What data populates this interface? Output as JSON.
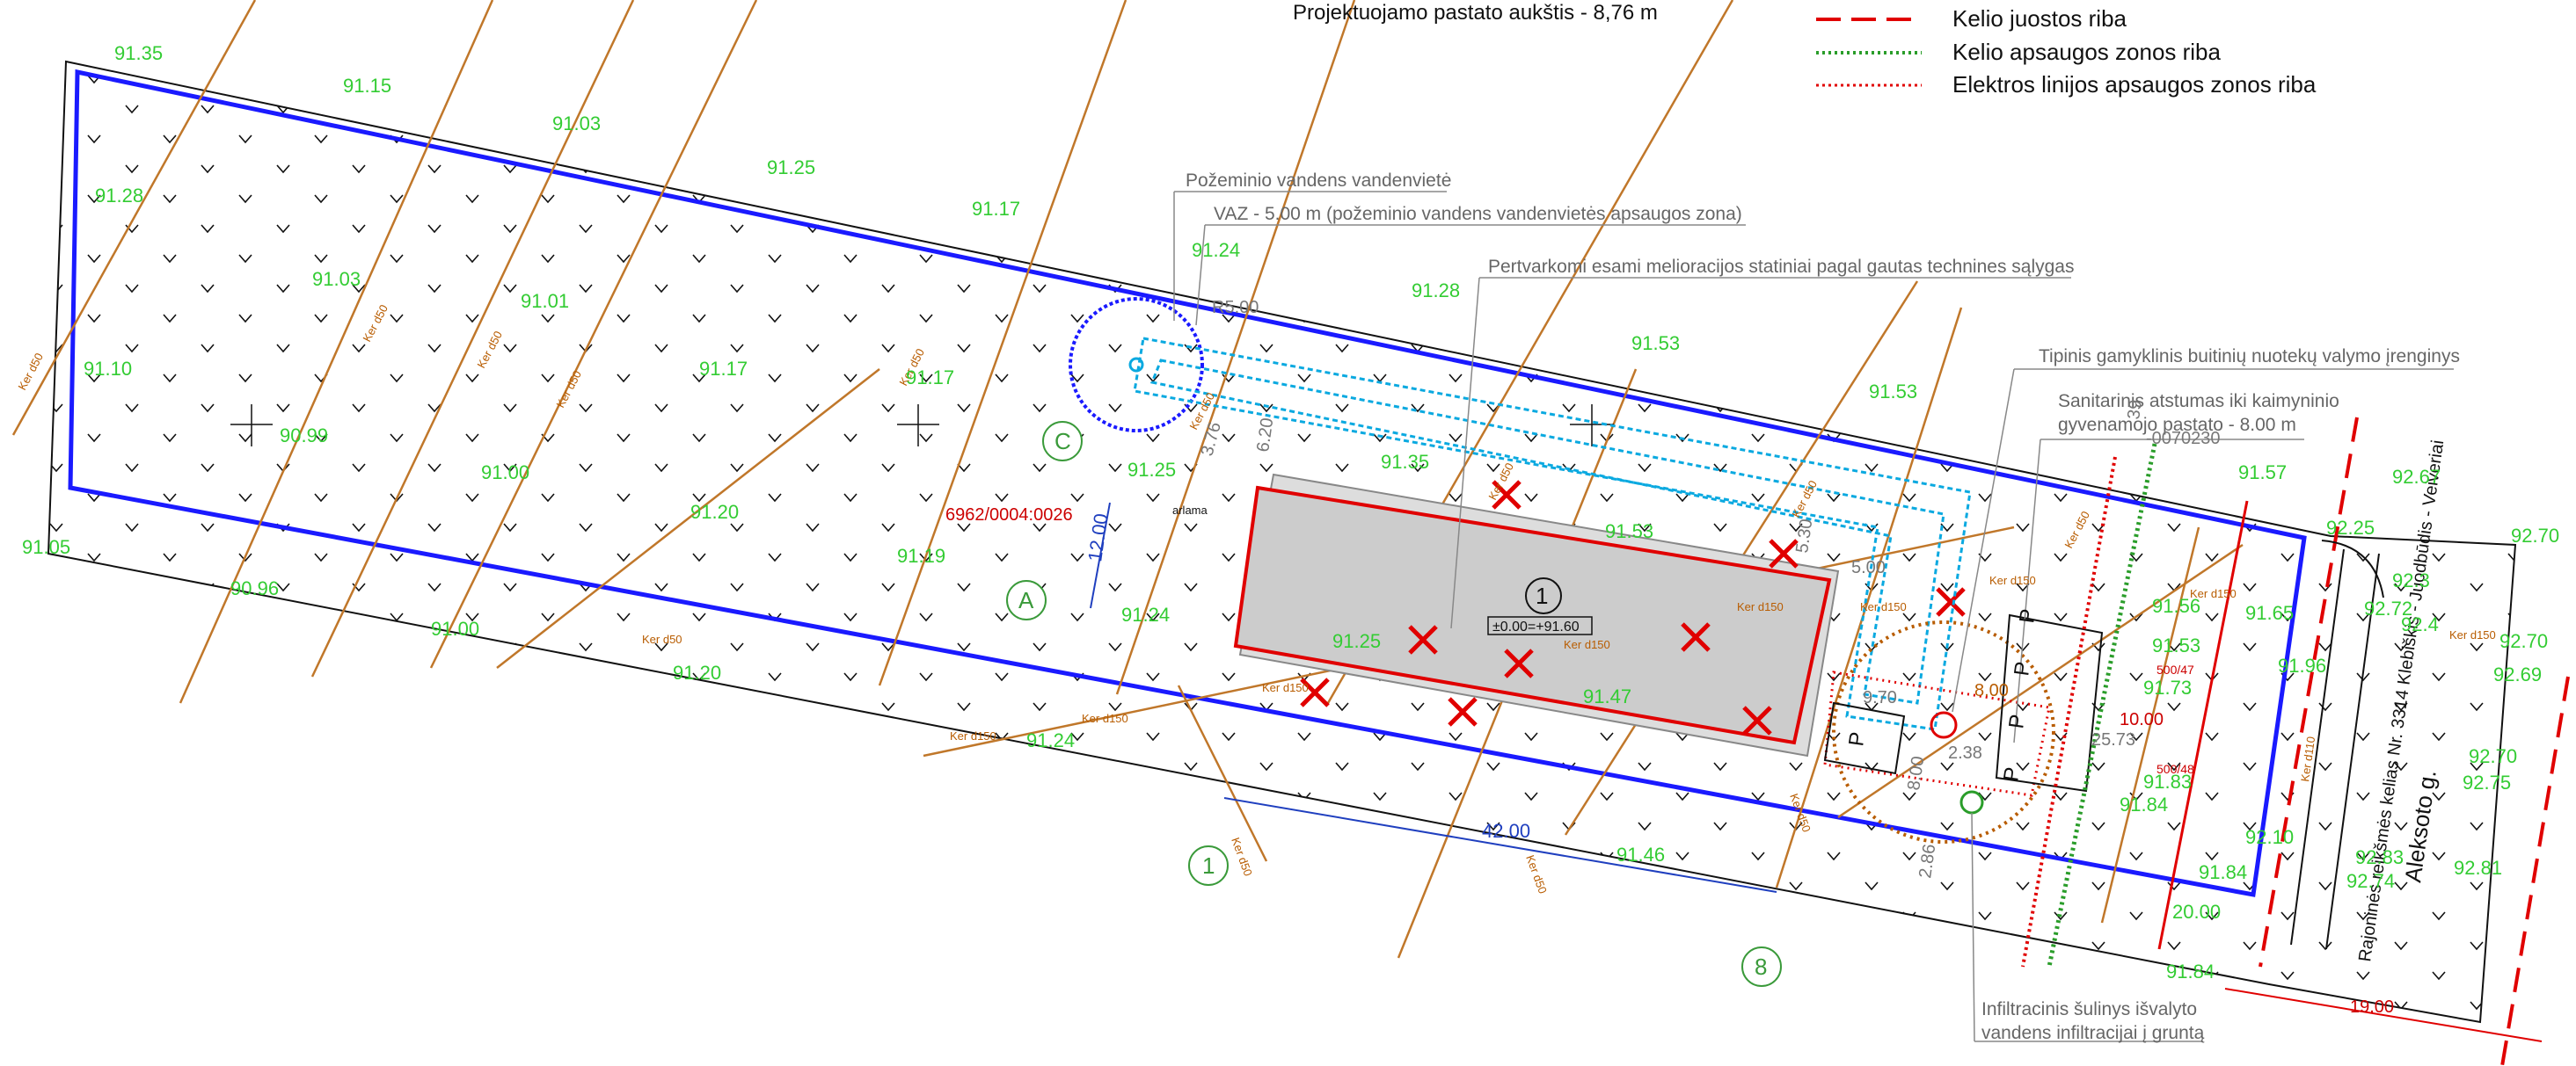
{
  "title": "Projektuojamo pastato aukštis - 8,76 m",
  "legend": [
    {
      "label": "Kelio juostos riba",
      "color": "#e00000",
      "style": "dashed"
    },
    {
      "label": "Kelio apsaugos zonos riba",
      "color": "#2a9d2a",
      "style": "dotted"
    },
    {
      "label": "Elektros linijos apsaugos zonos riba",
      "color": "#e00000",
      "style": "dotted"
    }
  ],
  "annotations": {
    "groundwater": "Požeminio vandens vandenvietė",
    "vaz": "VAZ - 5.00 m  (požeminio vandens vandenvietės apsaugos zona)",
    "melioration": "Pertvarkomi esami melioracijos statiniai pagal gautas technines sąlygas",
    "treatment": "Tipinis gamyklinis buitinių nuotekų valymo įrenginys",
    "sanitary_1": "Sanitarinis atstumas iki kaimyninio",
    "sanitary_2": "gyvenamojo pastato - 8.00 m",
    "infiltration_1": "Infiltracinis šulinys išvalyto",
    "infiltration_2": "vandens infiltracijai į gruntą",
    "road_1": "Rajoninės reikšmės kelias Nr. 3314 Klebiškis - Juodbūdis - Veiveriai",
    "street": "Aleksoto g.",
    "parcel": "6962/0004:0026",
    "parcel_partial": "arlama",
    "parcel_top": "-0070230",
    "building_no": "1",
    "building_level": "±0.00=+91.60"
  },
  "axes": {
    "c": "C",
    "a": "A",
    "n1": "1",
    "n8": "8"
  },
  "dimensions": {
    "d42": "42.00",
    "d12": "12.00",
    "d19": "19.00",
    "d20": "20.00",
    "d10": "10.00",
    "d8a": "8.00",
    "d8b": "8.00",
    "d5a": "5.00",
    "d5b": "5.30",
    "d620": "6.20",
    "d376": "3.76",
    "d970": "9.70",
    "d2573": "25.73",
    "d238": "2.38",
    "d286": "2.86",
    "r5": "R5.00",
    "d39": "39"
  },
  "pipes": {
    "ker50": "Ker d50",
    "ker150": "Ker d150",
    "ker110": "Ker d110"
  },
  "power": {
    "a": "500/47",
    "b": "500/48"
  },
  "parking": "P",
  "elevations": [
    "91.35",
    "91.15",
    "91.03",
    "91.25",
    "91.17",
    "91.24",
    "91.28",
    "91.53",
    "91.53",
    "91.28",
    "91.03",
    "91.01",
    "91.10",
    "91.17",
    "91.17",
    "90.99",
    "91.00",
    "91.20",
    "91.19",
    "91.05",
    "90.96",
    "91.00",
    "91.20",
    "91.24",
    "91.25",
    "91.35",
    "91.53",
    "91.25",
    "91.24",
    "91.47",
    "91.46",
    "91.57",
    "91.56",
    "91.53",
    "91.73",
    "91.65",
    "91.96",
    "91.84",
    "91.83",
    "92.10",
    "91.84",
    "91.84",
    "92.67",
    "92.25",
    "92.70",
    "92.72",
    "92.70",
    "92.69",
    "92.70",
    "92.75",
    "92.81",
    "92.83",
    "92.74",
    "92.3",
    "92.4"
  ]
}
